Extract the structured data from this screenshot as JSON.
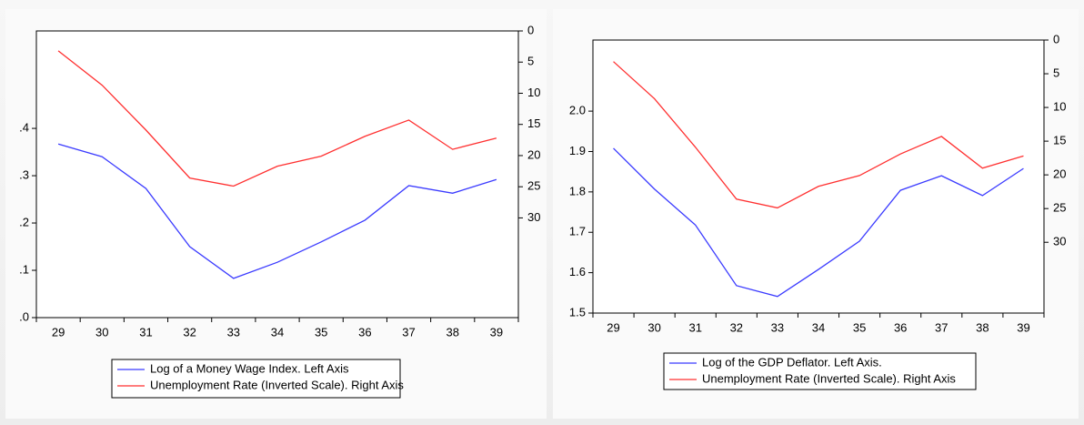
{
  "chart_data": [
    {
      "type": "line",
      "categories": [
        "29",
        "30",
        "31",
        "32",
        "33",
        "34",
        "35",
        "36",
        "37",
        "38",
        "39"
      ],
      "ylim": [
        0,
        0.606
      ],
      "yticks": [
        {
          "value": 0,
          "label": ".0"
        },
        {
          "value": 0.1,
          "label": ".1"
        },
        {
          "value": 0.2,
          "label": ".2"
        },
        {
          "value": 0.3,
          "label": ".3"
        },
        {
          "value": 0.4,
          "label": ".4"
        }
      ],
      "y2lim": [
        0,
        46
      ],
      "y2_inverted": true,
      "y2ticks": [
        0,
        5,
        10,
        15,
        20,
        25,
        30
      ],
      "series": [
        {
          "name": "Log of a Money Wage Index. Left Axis",
          "color": "#3b3bff",
          "values": [
            0.367,
            0.34,
            0.273,
            0.15,
            0.083,
            0.117,
            0.16,
            0.206,
            0.279,
            0.263,
            0.292
          ]
        },
        {
          "name": "Unemployment Rate (Inverted Scale). Right Axis",
          "color": "#ff3030",
          "axis": "y2",
          "values": [
            3.2,
            8.7,
            15.9,
            23.6,
            24.9,
            21.7,
            20.1,
            16.9,
            14.3,
            19.0,
            17.2
          ]
        }
      ]
    },
    {
      "type": "line",
      "categories": [
        "29",
        "30",
        "31",
        "32",
        "33",
        "34",
        "35",
        "36",
        "37",
        "38",
        "39"
      ],
      "ylim": [
        1.5,
        2.176
      ],
      "yticks": [
        1.5,
        1.6,
        1.7,
        1.8,
        1.9,
        {
          "value": 2,
          "label": "2.0"
        }
      ],
      "y2lim": [
        0,
        40.5
      ],
      "y2_inverted": true,
      "y2ticks": [
        0,
        5,
        10,
        15,
        20,
        25,
        30
      ],
      "series": [
        {
          "name": "Log of the GDP Deflator. Left Axis.",
          "color": "#3b3bff",
          "values": [
            1.908,
            1.807,
            1.718,
            1.568,
            1.541,
            1.608,
            1.678,
            1.804,
            1.84,
            1.791,
            1.858
          ]
        },
        {
          "name": "Unemployment Rate (Inverted Scale). Right Axis",
          "color": "#ff3030",
          "axis": "y2",
          "values": [
            3.2,
            8.7,
            15.9,
            23.6,
            24.9,
            21.7,
            20.1,
            16.9,
            14.3,
            19.0,
            17.2
          ]
        }
      ]
    }
  ]
}
